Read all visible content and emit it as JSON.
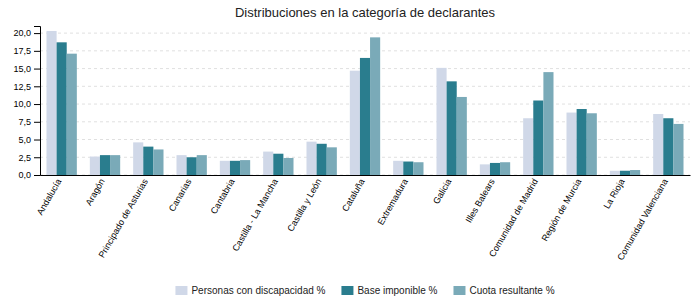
{
  "chart_data": {
    "type": "bar",
    "title": "Distribuciones en la categoría de declarantes",
    "categories": [
      "Andalucía",
      "Aragón",
      "Principado de Asturias",
      "Canarias",
      "Cantabria",
      "Castilla - La Mancha",
      "Castilla y León",
      "Cataluña",
      "Extremadura",
      "Galicia",
      "Illes Balears",
      "Comunidad de Madrid",
      "Región de Murcia",
      "La Rioja",
      "Comunidad Valenciana"
    ],
    "series": [
      {
        "name": "Personas con discapacidad %",
        "color": "#d0d8e8",
        "values": [
          20.3,
          2.6,
          4.6,
          2.8,
          2.0,
          3.3,
          4.7,
          14.7,
          2.0,
          15.1,
          1.5,
          8.0,
          8.8,
          0.6,
          8.6
        ]
      },
      {
        "name": "Base imponible %",
        "color": "#2a7d8e",
        "values": [
          18.7,
          2.8,
          4.0,
          2.5,
          2.0,
          3.0,
          4.4,
          16.5,
          1.9,
          13.2,
          1.7,
          10.5,
          9.3,
          0.6,
          8.0
        ]
      },
      {
        "name": "Cuota resultante %",
        "color": "#7aaab8",
        "values": [
          17.1,
          2.8,
          3.6,
          2.8,
          2.1,
          2.4,
          3.9,
          19.4,
          1.8,
          11.0,
          1.8,
          14.5,
          8.7,
          0.7,
          7.2
        ]
      }
    ],
    "ylim": [
      0,
      21.0
    ],
    "yticks": [
      {
        "value": 0.0,
        "label": "0,0"
      },
      {
        "value": 2.5,
        "label": "2,5"
      },
      {
        "value": 5.0,
        "label": "5,0"
      },
      {
        "value": 7.5,
        "label": "7,5"
      },
      {
        "value": 10.0,
        "label": "10,0"
      },
      {
        "value": 12.5,
        "label": "12,5"
      },
      {
        "value": 15.0,
        "label": "15,0"
      },
      {
        "value": 17.5,
        "label": "17,5"
      },
      {
        "value": 20.0,
        "label": "20,0"
      }
    ],
    "grid": true,
    "legend": "bottom"
  }
}
